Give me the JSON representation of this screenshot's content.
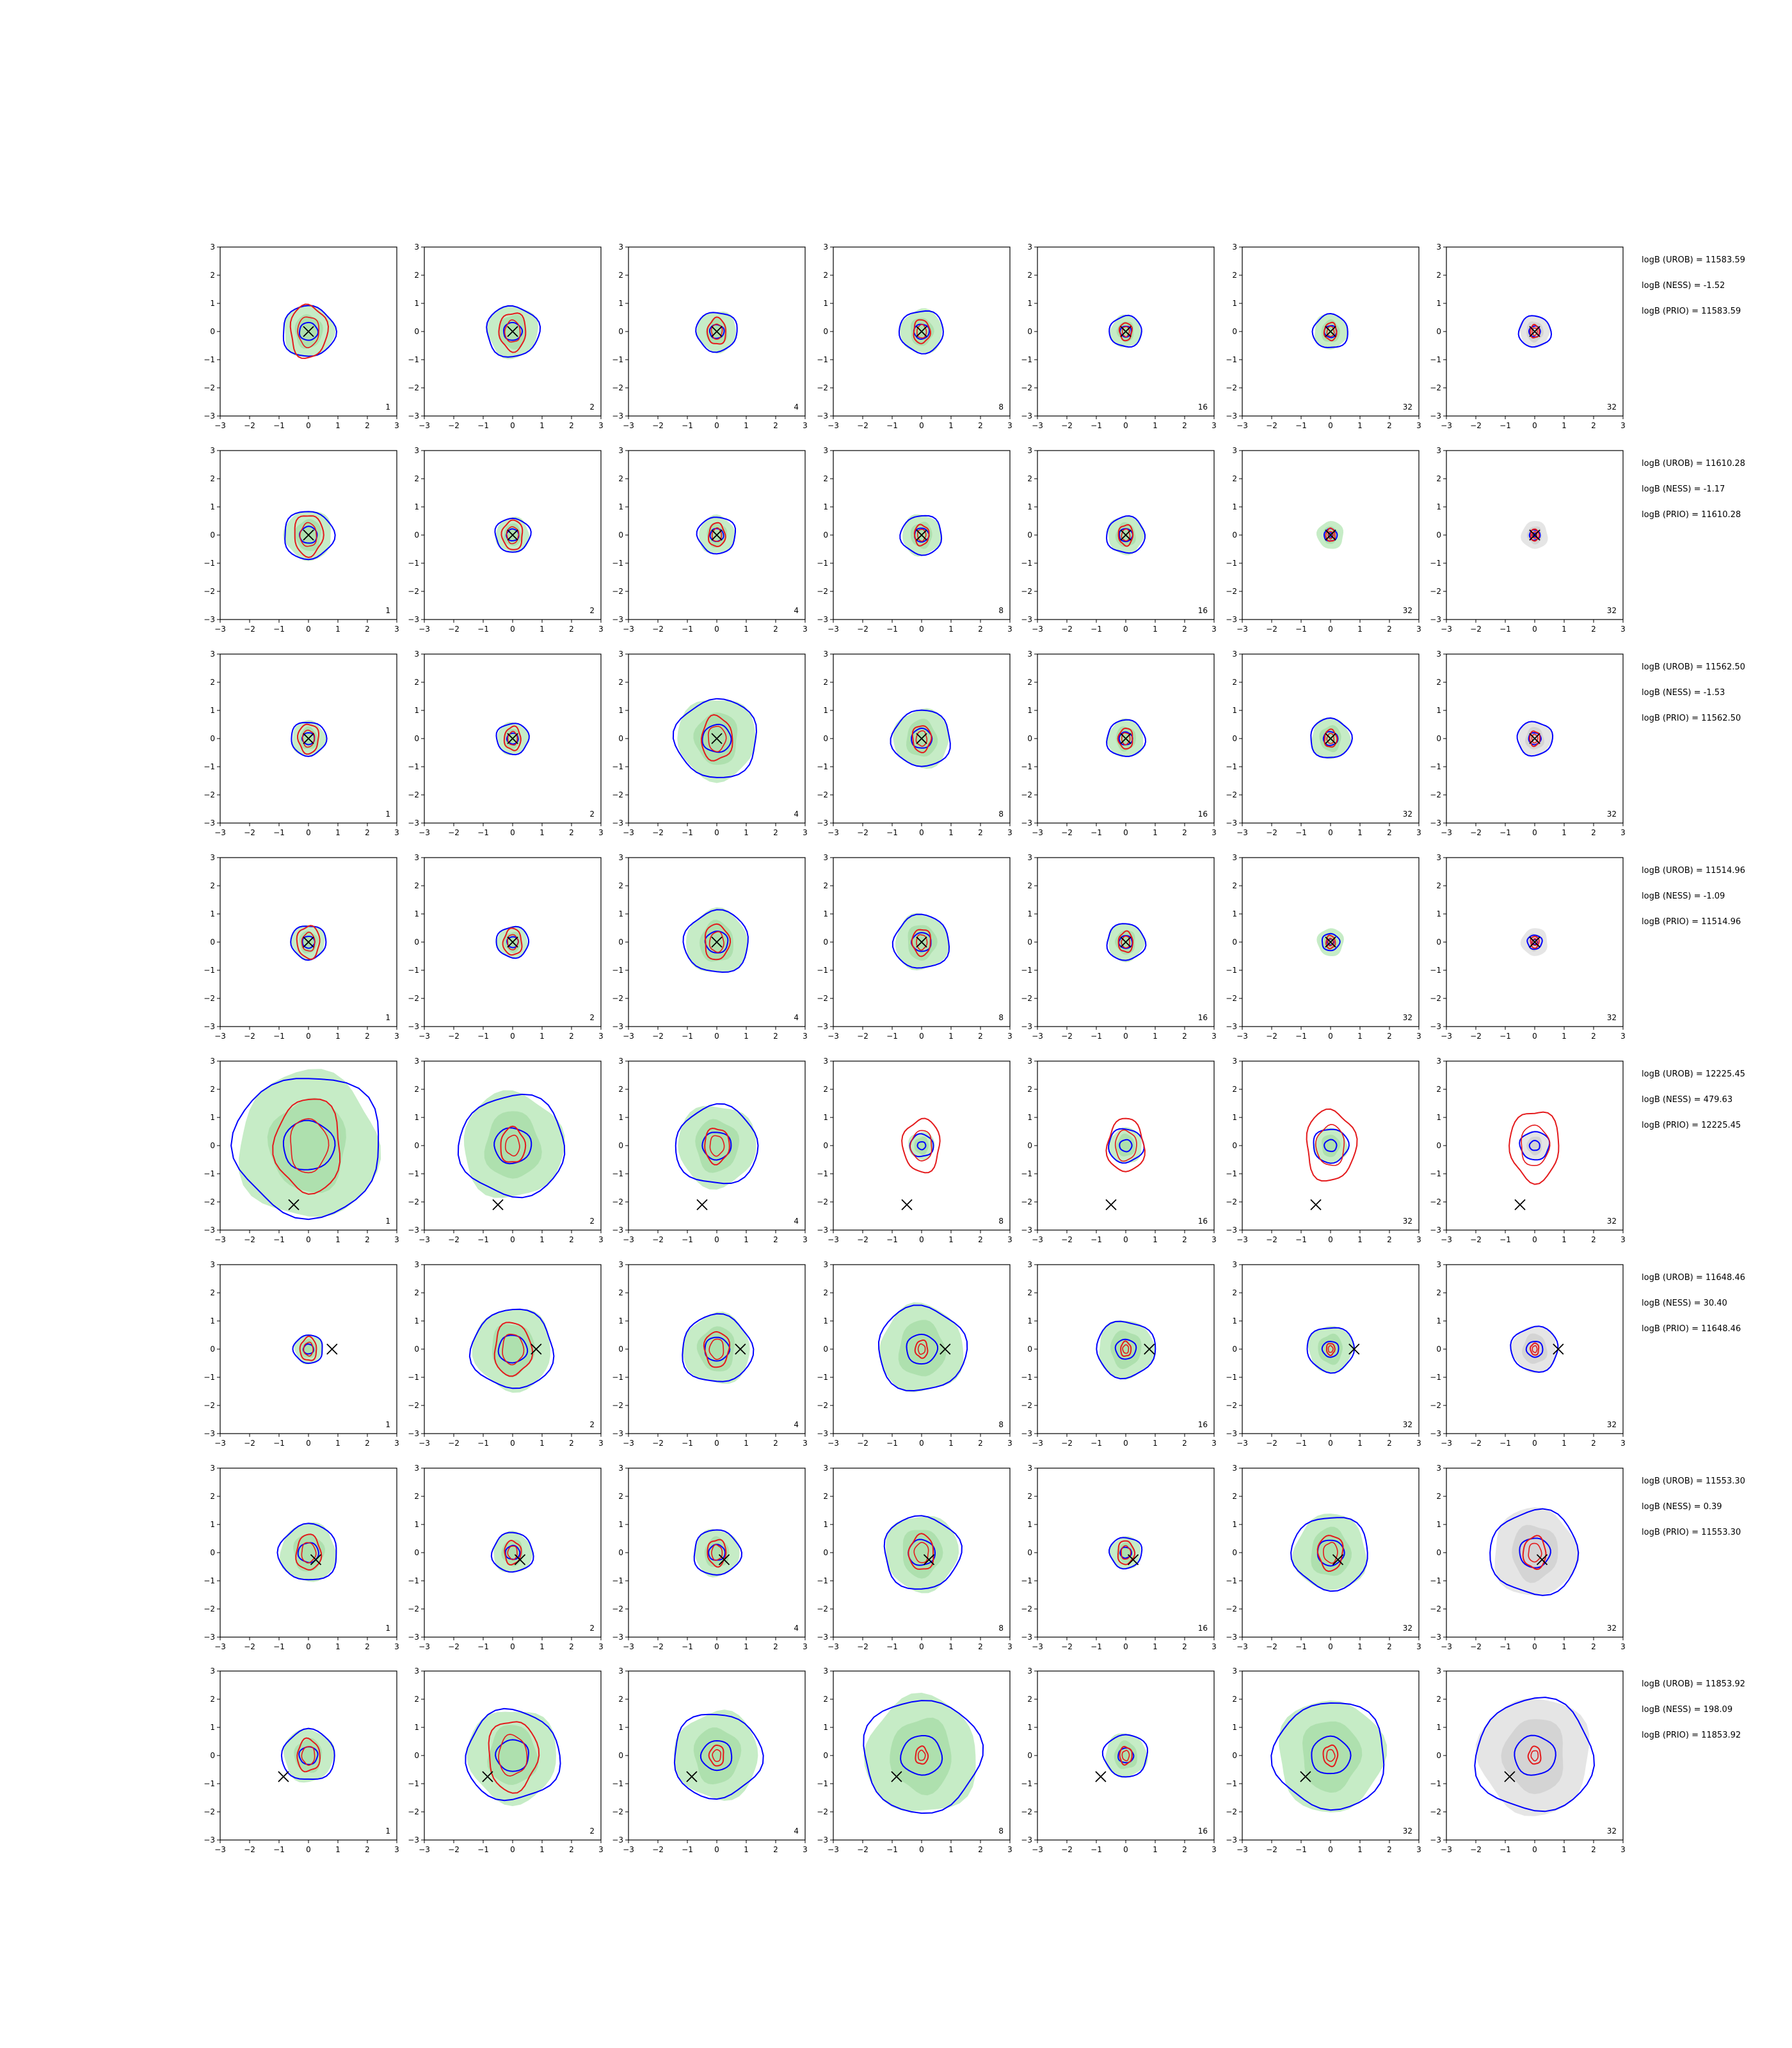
{
  "chart_data": {
    "type": "contour",
    "layout": "8 rows x 7 columns of 2D density contour panels",
    "xlim": [
      -3,
      3
    ],
    "ylim": [
      -3,
      3
    ],
    "x_ticks": [
      "−3",
      "−2",
      "−1",
      "0",
      "1",
      "2",
      "3"
    ],
    "y_ticks": [
      "3",
      "2",
      "1",
      "0",
      "−1",
      "−2",
      "−3"
    ],
    "grid": false,
    "legend": "none",
    "colors": {
      "blue_contour": "#0000ff",
      "red_contour": "#e41a1c",
      "green_fill": "#b3e6b3",
      "grey_fill": "#dcdcdc",
      "marker": "#000000"
    },
    "panel_tags": [
      "1",
      "2",
      "4",
      "8",
      "16",
      "32",
      "32"
    ],
    "rows": [
      {
        "marker": [
          0,
          0
        ],
        "blue_radius": [
          0.9,
          0.9,
          0.7,
          0.75,
          0.55,
          0.6,
          0.55
        ],
        "red_radius": [
          0.9,
          0.65,
          0.45,
          0.4,
          0.3,
          0.3,
          0.22
        ],
        "notes": [
          "logB (UROB) = 11583.59",
          "logB (NESS) = -1.52",
          "logB (PRIO) = 11583.59"
        ]
      },
      {
        "marker": [
          0,
          0
        ],
        "blue_radius": [
          0.85,
          0.6,
          0.65,
          0.7,
          0.65,
          0.22,
          0.18
        ],
        "red_radius": [
          0.7,
          0.5,
          0.4,
          0.35,
          0.35,
          0.22,
          0.2
        ],
        "notes": [
          "logB (UROB) = 11610.28",
          "logB (NESS) = -1.17",
          "logB (PRIO) = 11610.28"
        ]
      },
      {
        "marker": [
          0,
          0
        ],
        "blue_radius": [
          0.6,
          0.55,
          1.4,
          1.0,
          0.65,
          0.7,
          0.6
        ],
        "red_radius": [
          0.5,
          0.4,
          0.75,
          0.45,
          0.35,
          0.3,
          0.25
        ],
        "notes": [
          "logB (UROB) = 11562.50",
          "logB (NESS) = -1.53",
          "logB (PRIO) = 11562.50"
        ]
      },
      {
        "marker": [
          0,
          0
        ],
        "blue_radius": [
          0.6,
          0.55,
          1.1,
          0.95,
          0.65,
          0.3,
          0.25
        ],
        "red_radius": [
          0.55,
          0.45,
          0.6,
          0.45,
          0.35,
          0.22,
          0.2
        ],
        "notes": [
          "logB (UROB) = 11514.96",
          "logB (NESS) = -1.09",
          "logB (PRIO) = 11514.96"
        ]
      },
      {
        "marker": [
          -0.5,
          -2.1
        ],
        "blue_radius": [
          2.5,
          1.8,
          1.4,
          0.4,
          0.6,
          0.6,
          0.5
        ],
        "red_radius": [
          1.6,
          0.6,
          0.6,
          0.9,
          0.9,
          1.2,
          1.2
        ],
        "notes": [
          "logB (UROB) = 12225.45",
          "logB (NESS) = 479.63",
          "logB (PRIO) = 12225.45"
        ]
      },
      {
        "marker": [
          0.8,
          0
        ],
        "blue_radius": [
          0.5,
          1.4,
          1.2,
          1.5,
          1.0,
          0.8,
          0.8
        ],
        "red_radius": [
          0.4,
          0.9,
          0.6,
          0.3,
          0.25,
          0.2,
          0.2
        ],
        "notes": [
          "logB (UROB) = 11648.46",
          "logB (NESS) = 30.40",
          "logB (PRIO) = 11648.46"
        ]
      },
      {
        "marker": [
          0.25,
          -0.25
        ],
        "blue_radius": [
          1.0,
          0.7,
          0.8,
          1.3,
          0.55,
          1.3,
          1.5
        ],
        "red_radius": [
          0.6,
          0.4,
          0.45,
          0.6,
          0.4,
          0.6,
          0.55
        ],
        "notes": [
          "logB (UROB) = 11553.30",
          "logB (NESS) = 0.39",
          "logB (PRIO) = 11553.30"
        ]
      },
      {
        "marker": [
          -0.85,
          -0.75
        ],
        "blue_radius": [
          0.9,
          1.6,
          1.5,
          2.0,
          0.75,
          1.9,
          2.0
        ],
        "red_radius": [
          0.55,
          1.2,
          0.35,
          0.3,
          0.3,
          0.35,
          0.3
        ],
        "notes": [
          "logB (UROB) = 11853.92",
          "logB (NESS) = 198.09",
          "logB (PRIO) = 11853.92"
        ]
      }
    ]
  }
}
